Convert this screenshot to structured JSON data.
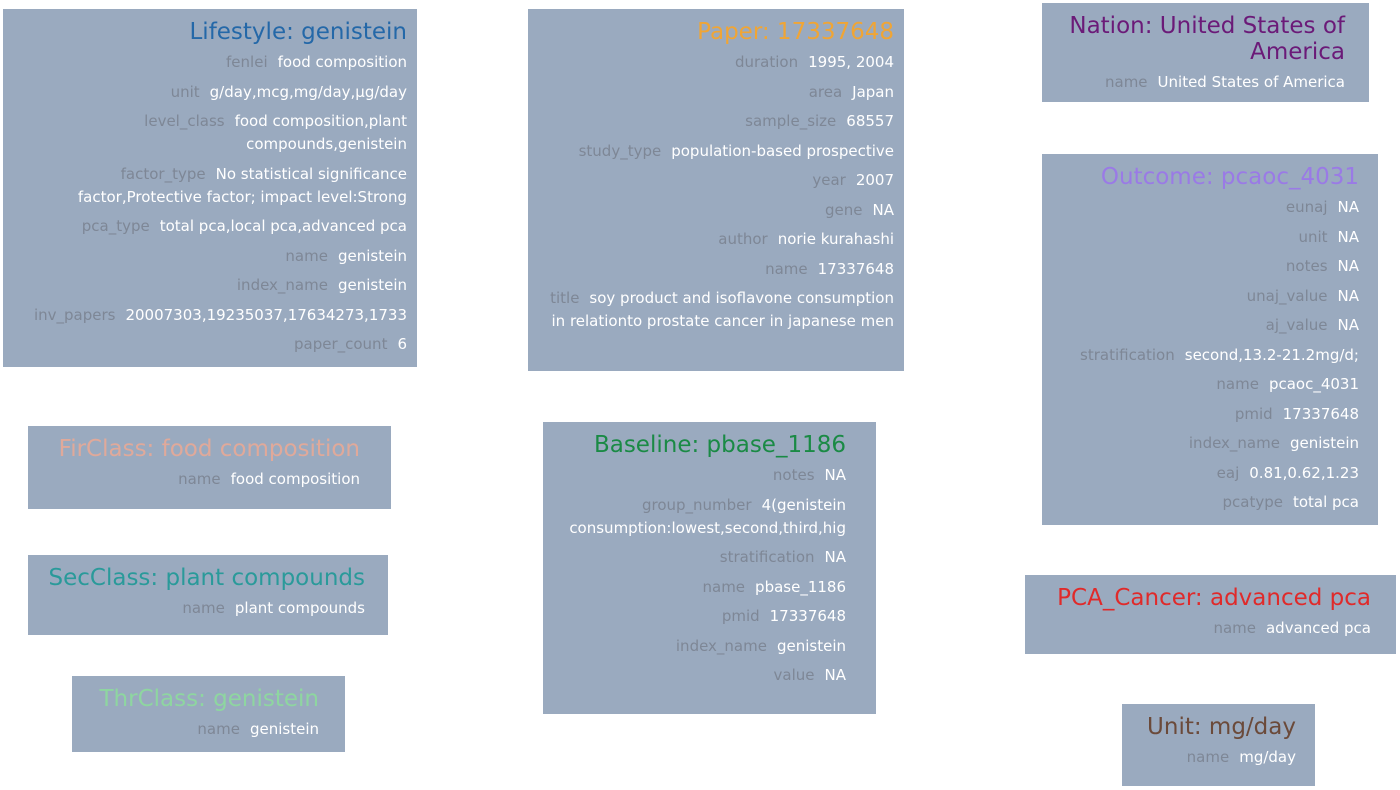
{
  "lifestyle": {
    "title": "Lifestyle: genistein",
    "color": "#2468a8",
    "fields": [
      {
        "k": "fenlei",
        "v": "food composition"
      },
      {
        "k": "unit",
        "v": "g/day,mcg,mg/day,μg/day"
      },
      {
        "k": "level_class",
        "v": "food composition,plant compounds,genistein"
      },
      {
        "k": "factor_type",
        "v": "No statistical significance factor,Protective factor; impact level:Strong"
      },
      {
        "k": "pca_type",
        "v": "total pca,local pca,advanced pca"
      },
      {
        "k": "name",
        "v": "genistein"
      },
      {
        "k": "index_name",
        "v": "genistein"
      },
      {
        "k": "inv_papers",
        "v": "20007303,19235037,17634273,1733"
      },
      {
        "k": "paper_count",
        "v": "6"
      }
    ]
  },
  "paper": {
    "title": "Paper: 17337648",
    "color": "#f0a535",
    "fields": [
      {
        "k": "duration",
        "v": "1995, 2004"
      },
      {
        "k": "area",
        "v": "Japan"
      },
      {
        "k": "sample_size",
        "v": "68557"
      },
      {
        "k": "study_type",
        "v": "population-based prospective"
      },
      {
        "k": "year",
        "v": "2007"
      },
      {
        "k": "gene",
        "v": "NA"
      },
      {
        "k": "author",
        "v": "norie kurahashi"
      },
      {
        "k": "name",
        "v": "17337648"
      },
      {
        "k": "title",
        "v": "soy product and isoflavone consumption in relationto prostate cancer in japanese men"
      }
    ]
  },
  "nation": {
    "title": "Nation: United States of America",
    "color": "#6b1a78",
    "fields": [
      {
        "k": "name",
        "v": "United States of America"
      }
    ]
  },
  "outcome": {
    "title": "Outcome: pcaoc_4031",
    "color": "#9a7ae6",
    "fields": [
      {
        "k": "eunaj",
        "v": "NA"
      },
      {
        "k": "unit",
        "v": "NA"
      },
      {
        "k": "notes",
        "v": "NA"
      },
      {
        "k": "unaj_value",
        "v": "NA"
      },
      {
        "k": "aj_value",
        "v": "NA"
      },
      {
        "k": "stratification",
        "v": "second,13.2-21.2mg/d;"
      },
      {
        "k": "name",
        "v": "pcaoc_4031"
      },
      {
        "k": "pmid",
        "v": "17337648"
      },
      {
        "k": "index_name",
        "v": "genistein"
      },
      {
        "k": "eaj",
        "v": "0.81,0.62,1.23"
      },
      {
        "k": "pcatype",
        "v": "total pca"
      }
    ]
  },
  "firclass": {
    "title": "FirClass: food composition",
    "color": "#e0a99a",
    "fields": [
      {
        "k": "name",
        "v": "food composition"
      }
    ]
  },
  "baseline": {
    "title": "Baseline: pbase_1186",
    "color": "#1a8a45",
    "fields": [
      {
        "k": "notes",
        "v": "NA"
      },
      {
        "k": "group_number",
        "v": "4(genistein consumption:lowest,second,third,hig"
      },
      {
        "k": "stratification",
        "v": "NA"
      },
      {
        "k": "name",
        "v": "pbase_1186"
      },
      {
        "k": "pmid",
        "v": "17337648"
      },
      {
        "k": "index_name",
        "v": "genistein"
      },
      {
        "k": "value",
        "v": "NA"
      }
    ]
  },
  "secclass": {
    "title": "SecClass: plant compounds",
    "color": "#2a9a9a",
    "fields": [
      {
        "k": "name",
        "v": "plant compounds"
      }
    ]
  },
  "pca_cancer": {
    "title": "PCA_Cancer: advanced pca",
    "color": "#e02a2a",
    "fields": [
      {
        "k": "name",
        "v": "advanced pca"
      }
    ]
  },
  "thrclass": {
    "title": "ThrClass: genistein",
    "color": "#8ed6a0",
    "fields": [
      {
        "k": "name",
        "v": "genistein"
      }
    ]
  },
  "unit": {
    "title": "Unit: mg/day",
    "color": "#6b4a3a",
    "fields": [
      {
        "k": "name",
        "v": "mg/day"
      }
    ]
  }
}
